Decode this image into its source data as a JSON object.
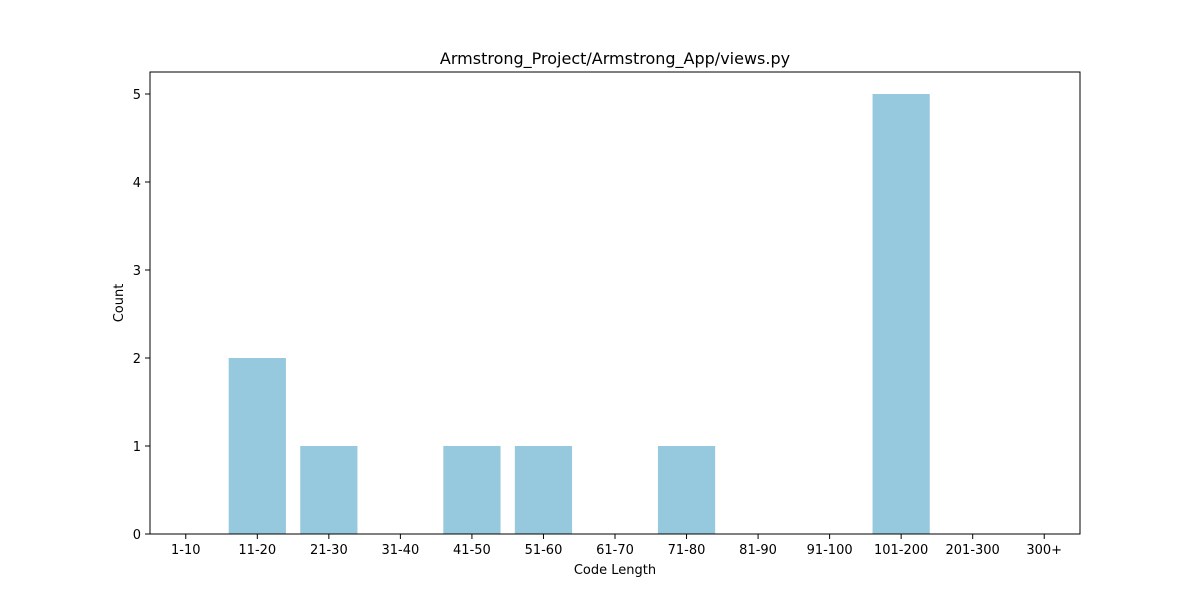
{
  "chart_data": {
    "type": "bar",
    "title": "Armstrong_Project/Armstrong_App/views.py",
    "xlabel": "Code Length",
    "ylabel": "Count",
    "categories": [
      "1-10",
      "11-20",
      "21-30",
      "31-40",
      "41-50",
      "51-60",
      "61-70",
      "71-80",
      "81-90",
      "91-100",
      "101-200",
      "201-300",
      "300+"
    ],
    "values": [
      0,
      2,
      1,
      0,
      1,
      1,
      0,
      1,
      0,
      0,
      5,
      0,
      0
    ],
    "ylim": [
      0,
      5.25
    ],
    "yticks": [
      0,
      1,
      2,
      3,
      4,
      5
    ],
    "grid": false,
    "bar_color": "#96c9dd"
  }
}
